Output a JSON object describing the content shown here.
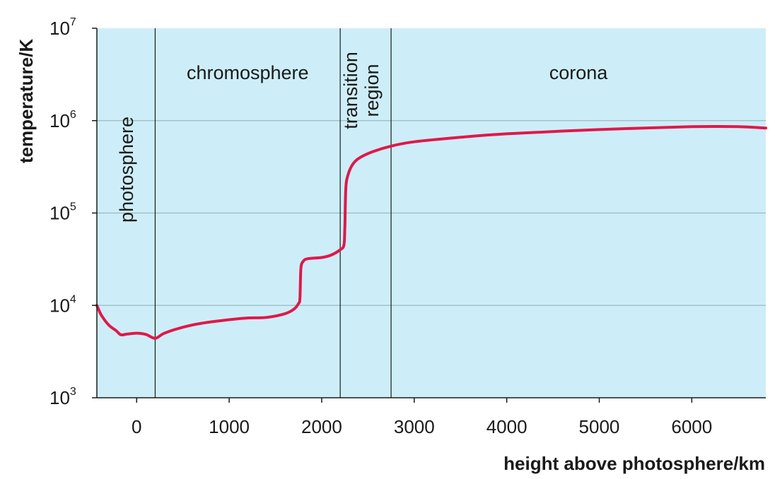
{
  "chart_data": {
    "type": "line",
    "xlabel": "height above photosphere/km",
    "ylabel": "temperature/K",
    "xlim": [
      -430,
      6800
    ],
    "ylim": [
      1000,
      10000000
    ],
    "yscale": "log",
    "x_ticks": [
      0,
      1000,
      2000,
      3000,
      4000,
      5000,
      6000
    ],
    "x_tick_labels": [
      "0",
      "1000",
      "2000",
      "3000",
      "4000",
      "5000",
      "6000"
    ],
    "y_ticks": [
      {
        "value": 1000,
        "base": "10",
        "exp": "3"
      },
      {
        "value": 10000,
        "base": "10",
        "exp": "4"
      },
      {
        "value": 100000,
        "base": "10",
        "exp": "5"
      },
      {
        "value": 1000000,
        "base": "10",
        "exp": "6"
      },
      {
        "value": 10000000,
        "base": "10",
        "exp": "7"
      }
    ],
    "grid_y": true,
    "regions": [
      {
        "label": "photosphere",
        "x_start": -430,
        "x_end": 200,
        "orientation": "vertical"
      },
      {
        "label": "chromosphere",
        "x_start": 200,
        "x_end": 2200,
        "orientation": "horizontal"
      },
      {
        "label_lines": [
          "transition",
          "region"
        ],
        "x_start": 2200,
        "x_end": 2750,
        "orientation": "vertical"
      },
      {
        "label": "corona",
        "x_start": 2750,
        "x_end": 6800,
        "orientation": "horizontal"
      }
    ],
    "region_boundaries": [
      200,
      2200,
      2750
    ],
    "series": [
      {
        "color": "#e0184a",
        "points": [
          [
            -430,
            10000
          ],
          [
            -380,
            7800
          ],
          [
            -300,
            6100
          ],
          [
            -220,
            5300
          ],
          [
            -170,
            4800
          ],
          [
            -100,
            4900
          ],
          [
            0,
            5000
          ],
          [
            100,
            4850
          ],
          [
            200,
            4400
          ],
          [
            300,
            5000
          ],
          [
            500,
            5800
          ],
          [
            700,
            6400
          ],
          [
            1000,
            7000
          ],
          [
            1200,
            7300
          ],
          [
            1400,
            7400
          ],
          [
            1600,
            8100
          ],
          [
            1700,
            9100
          ],
          [
            1750,
            10500
          ],
          [
            1765,
            12000
          ],
          [
            1775,
            25000
          ],
          [
            1800,
            30000
          ],
          [
            1850,
            32000
          ],
          [
            2000,
            33000
          ],
          [
            2100,
            35000
          ],
          [
            2200,
            40000
          ],
          [
            2240,
            45000
          ],
          [
            2250,
            70000
          ],
          [
            2260,
            180000
          ],
          [
            2280,
            250000
          ],
          [
            2330,
            330000
          ],
          [
            2400,
            390000
          ],
          [
            2550,
            460000
          ],
          [
            2750,
            530000
          ],
          [
            3000,
            590000
          ],
          [
            3500,
            660000
          ],
          [
            4000,
            720000
          ],
          [
            5000,
            800000
          ],
          [
            6000,
            860000
          ],
          [
            6500,
            860000
          ],
          [
            6800,
            830000
          ]
        ]
      }
    ],
    "colors": {
      "plot_background": "#cdeef8",
      "curve": "#e0184a",
      "gridline": "#9cb8c4"
    }
  }
}
